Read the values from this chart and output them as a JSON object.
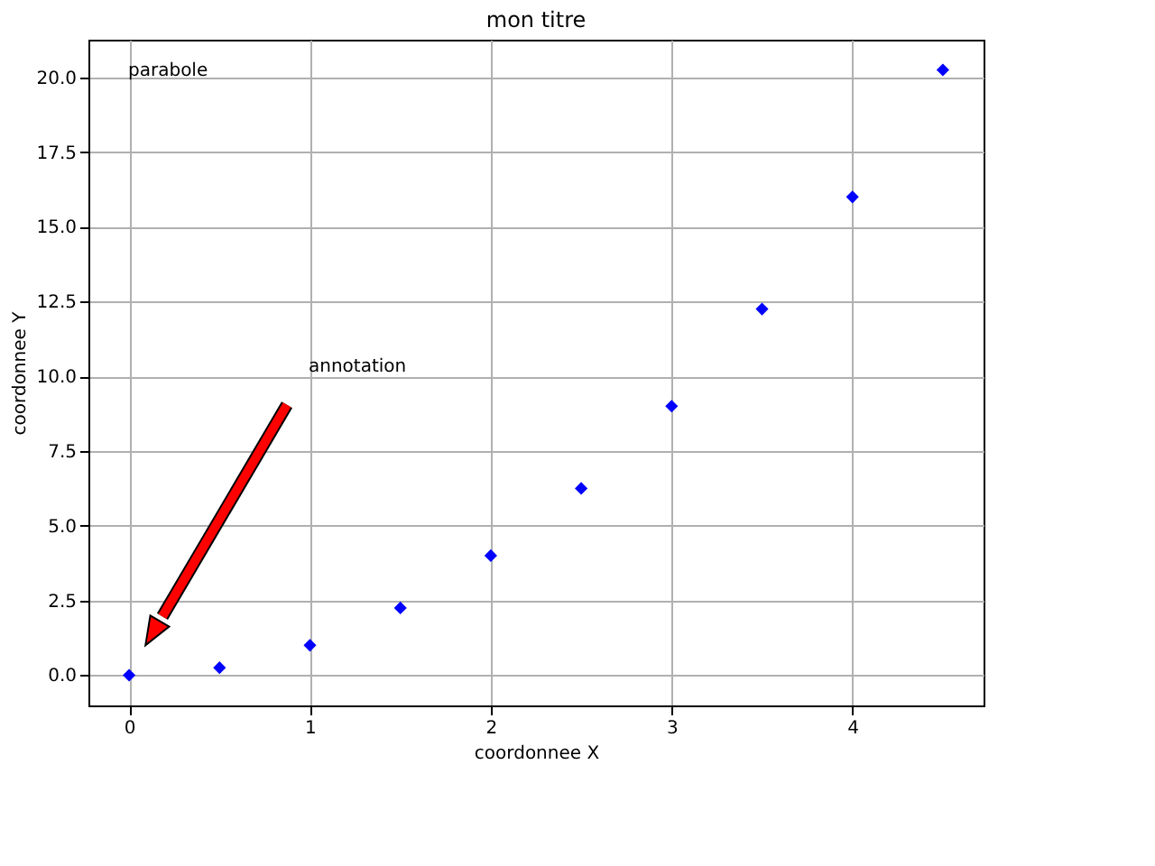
{
  "chart_data": {
    "type": "scatter",
    "title": "mon titre",
    "xlabel": "coordonnee X",
    "ylabel": "coordonnee Y",
    "x": [
      0,
      0.5,
      1,
      1.5,
      2,
      2.5,
      3,
      3.5,
      4,
      4.5
    ],
    "series": [
      {
        "color": "#0000ff",
        "values": [
          0,
          0.25,
          1,
          2.25,
          4,
          6.25,
          9,
          12.25,
          16,
          20.25
        ]
      }
    ],
    "marker": "diamond",
    "grid": true,
    "xlim": [
      -0.225,
      4.725
    ],
    "ylim": [
      -1.0125,
      21.2625
    ],
    "xticks": [
      0,
      1,
      2,
      3,
      4
    ],
    "yticks": [
      {
        "value": 0,
        "label": "0.0"
      },
      {
        "value": 2.5,
        "label": "2.5"
      },
      {
        "value": 5,
        "label": "5.0"
      },
      {
        "value": 7.5,
        "label": "7.5"
      },
      {
        "value": 10,
        "label": "10.0"
      },
      {
        "value": 12.5,
        "label": "12.5"
      },
      {
        "value": 15,
        "label": "15.0"
      },
      {
        "value": 17.5,
        "label": "17.5"
      },
      {
        "value": 20,
        "label": "20.0"
      }
    ],
    "annotations": [
      "parabole",
      "annotation"
    ]
  }
}
